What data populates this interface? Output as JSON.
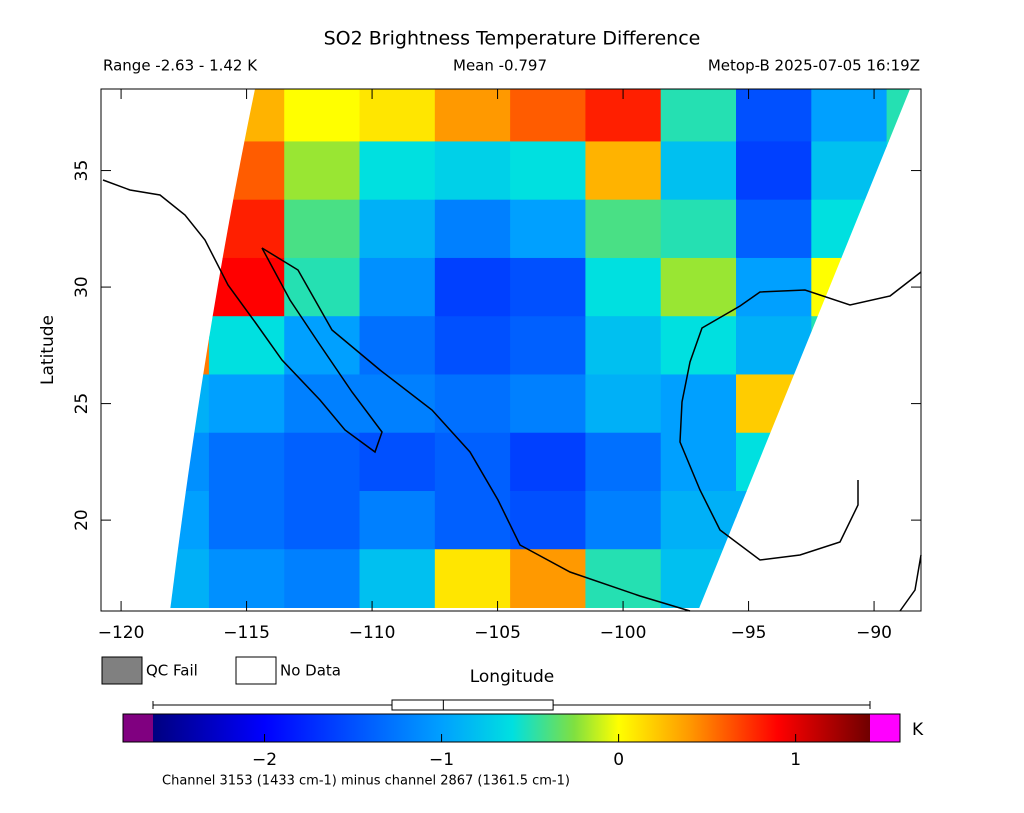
{
  "map": {
    "title": "SO2 Brightness Temperature Difference",
    "range_text": "Range -2.63 - 1.42 K",
    "mean_text": "Mean -0.797",
    "satellite_text": "Metop-B 2025-07-05 16:19Z",
    "xlabel": "Longitude",
    "ylabel": "Latitude",
    "xlim": [
      -120.8,
      -88.13
    ],
    "ylim": [
      16.1,
      38.5
    ],
    "xticks": [
      {
        "value": -120,
        "label": "−120"
      },
      {
        "value": -115,
        "label": "−115"
      },
      {
        "value": -110,
        "label": "−110"
      },
      {
        "value": -105,
        "label": "−105"
      },
      {
        "value": -100,
        "label": "−100"
      },
      {
        "value": -95,
        "label": "−95"
      },
      {
        "value": -90,
        "label": "−90"
      }
    ],
    "yticks": [
      20,
      25,
      30,
      35
    ],
    "legend": {
      "qc_fail": "QC Fail",
      "no_data": "No Data",
      "qc_color": "#808080"
    },
    "grid": {
      "lon": [
        -118,
        -115,
        -112,
        -109,
        -106,
        -103,
        -100,
        -97,
        -94,
        -91,
        -88
      ],
      "lat": [
        37.5,
        35,
        32.5,
        30,
        27.5,
        25,
        22.5,
        20,
        17.5
      ],
      "values": [
        [
          0.3,
          0.3,
          0.0,
          0.1,
          0.4,
          0.6,
          0.8,
          -0.5,
          -1.5,
          -1.0,
          -0.5
        ],
        [
          0.6,
          0.6,
          -0.2,
          -0.6,
          -0.7,
          -0.6,
          0.3,
          -0.8,
          -1.6,
          -0.8,
          -0.6
        ],
        [
          0.8,
          0.8,
          -0.4,
          -0.9,
          -1.2,
          -1.0,
          -0.4,
          -0.5,
          -1.4,
          -0.6,
          -0.5
        ],
        [
          0.9,
          0.9,
          -0.5,
          -1.1,
          -1.6,
          -1.5,
          -0.6,
          -0.2,
          -1.0,
          0.0,
          0.0
        ],
        [
          0.5,
          -0.6,
          -1.0,
          -1.3,
          -1.5,
          -1.4,
          -0.8,
          -0.6,
          -0.9,
          -0.5,
          -0.5
        ],
        [
          -0.9,
          -1.0,
          -1.2,
          -1.2,
          -1.3,
          -1.2,
          -0.9,
          -1.0,
          0.2,
          0.2,
          0.2
        ],
        [
          -1.1,
          -1.3,
          -1.4,
          -1.5,
          -1.4,
          -1.6,
          -1.3,
          -1.0,
          -0.6,
          -0.6,
          -0.6
        ],
        [
          -1.0,
          -1.3,
          -1.4,
          -1.2,
          -1.4,
          -1.5,
          -1.2,
          -0.9,
          -0.9,
          -0.9,
          -0.9
        ],
        [
          -0.9,
          -1.1,
          -1.2,
          -0.8,
          0.1,
          0.4,
          -0.5,
          -0.8,
          -0.8,
          -0.8,
          -0.8
        ]
      ]
    },
    "colorbar": {
      "lim": [
        -2.63,
        1.42
      ],
      "ticks": [
        {
          "value": -2,
          "label": "−2"
        },
        {
          "value": -1,
          "label": "−1"
        },
        0,
        1
      ],
      "unit": "K",
      "under_color": "#800080",
      "over_color": "#ff00ff",
      "stops": [
        {
          "value": -2.63,
          "color": "#000080"
        },
        {
          "value": -2.0,
          "color": "#0000ff"
        },
        {
          "value": -1.0,
          "color": "#00a0ff"
        },
        {
          "value": -0.6,
          "color": "#00e0e0"
        },
        {
          "value": -0.25,
          "color": "#80e040"
        },
        {
          "value": 0.0,
          "color": "#ffff00"
        },
        {
          "value": 0.4,
          "color": "#ff9900"
        },
        {
          "value": 0.9,
          "color": "#ff0000"
        },
        {
          "value": 1.42,
          "color": "#700000"
        }
      ],
      "box": {
        "min": -2.63,
        "q1": -1.28,
        "median": -0.99,
        "q3": -0.37,
        "max": 1.42
      }
    },
    "footnote": "Channel 3153 (1433 cm-1) minus channel 2867 (1361.5 cm-1)"
  }
}
